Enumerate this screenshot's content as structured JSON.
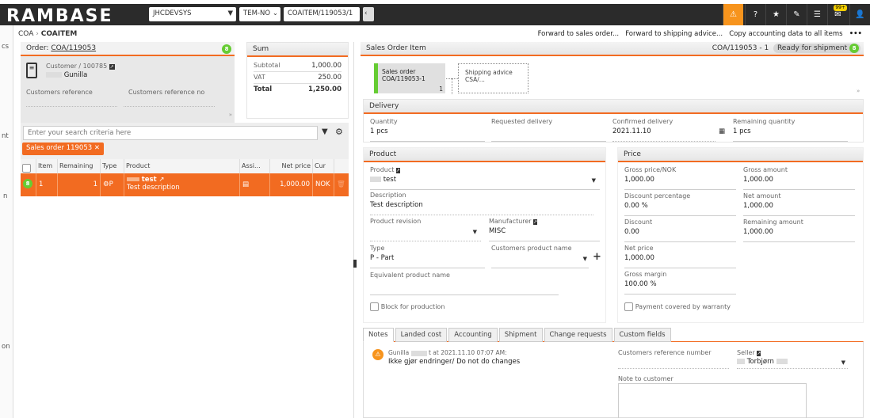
{
  "topbar": {
    "logo": "RAMBASE",
    "system": "JHCDEVSYS",
    "company": "TEM-NO",
    "object_input": "COAITEM/119053/1",
    "notification_count": "99+",
    "accent": "#f7941d"
  },
  "sidebar": {
    "fragments": [
      "cs",
      "nt",
      "n",
      "on"
    ]
  },
  "breadcrumb": {
    "parent": "COA",
    "current": "COAITEM"
  },
  "actions": {
    "forward_sales": "Forward to sales order...",
    "forward_shipping": "Forward to shipping advice...",
    "copy_accounting": "Copy accounting data to all items",
    "more": "•••"
  },
  "order": {
    "label": "Order:",
    "id": "COA/119053",
    "status": "8",
    "customer_label": "Customer / 100785",
    "customer_name": "Gunilla",
    "cust_ref_label": "Customers reference",
    "cust_ref_no_label": "Customers reference no"
  },
  "sum": {
    "title": "Sum",
    "rows": [
      {
        "label": "Subtotal",
        "value": "1,000.00"
      },
      {
        "label": "VAT",
        "value": "250.00"
      },
      {
        "label": "Total",
        "value": "1,250.00"
      }
    ]
  },
  "search": {
    "placeholder": "Enter your search criteria here",
    "chip": "Sales order 119053"
  },
  "table": {
    "headers": [
      "Item",
      "Remaining",
      "Type",
      "Product",
      "Assi...",
      "Net price",
      "Cur"
    ],
    "rows": [
      {
        "status": "8",
        "item": "1",
        "remaining": "1",
        "type": "P",
        "product": "test",
        "description": "Test description",
        "net_price": "1,000.00",
        "currency": "NOK"
      }
    ]
  },
  "item": {
    "title": "Sales Order Item",
    "ref": "COA/119053 - 1",
    "status": "Ready for shipment",
    "status_code": "8",
    "flow": {
      "so_title": "Sales order",
      "so_id": "COA/119053-1",
      "so_count": "1",
      "sa_title": "Shipping advice",
      "sa_id": "CSA/..."
    }
  },
  "delivery": {
    "title": "Delivery",
    "quantity_label": "Quantity",
    "quantity": "1 pcs",
    "requested_label": "Requested delivery",
    "requested": "",
    "confirmed_label": "Confirmed delivery",
    "confirmed": "2021.11.10",
    "remaining_label": "Remaining quantity",
    "remaining": "1 pcs"
  },
  "product": {
    "title": "Product",
    "product_label": "Product",
    "product": "test",
    "description_label": "Description",
    "description": "Test description",
    "revision_label": "Product revision",
    "manufacturer_label": "Manufacturer",
    "manufacturer": "MISC",
    "type_label": "Type",
    "type": "P - Part",
    "cust_product_label": "Customers product name",
    "equiv_label": "Equivalent product name",
    "block_label": "Block for production"
  },
  "price": {
    "title": "Price",
    "gross_price_label": "Gross price/NOK",
    "gross_price": "1,000.00",
    "gross_amount_label": "Gross amount",
    "gross_amount": "1,000.00",
    "disc_pct_label": "Discount percentage",
    "disc_pct": "0.00 %",
    "net_amount_label": "Net amount",
    "net_amount": "1,000.00",
    "discount_label": "Discount",
    "discount": "0.00",
    "remaining_amount_label": "Remaining amount",
    "remaining_amount": "1,000.00",
    "net_price_label": "Net price",
    "net_price": "1,000.00",
    "margin_label": "Gross margin",
    "margin": "100.00 %",
    "warranty_label": "Payment covered by warranty"
  },
  "tabs": [
    "Notes",
    "Landed cost",
    "Accounting",
    "Shipment",
    "Change requests",
    "Custom fields"
  ],
  "notes": {
    "author": "Gunilla",
    "meta": "t at 2021.11.10 07:07 AM:",
    "text": "Ikke gjør endringer/ Do not do changes",
    "cust_ref_num_label": "Customers reference number",
    "seller_label": "Seller",
    "seller": "Torbjørn",
    "note_customer_label": "Note to customer"
  }
}
